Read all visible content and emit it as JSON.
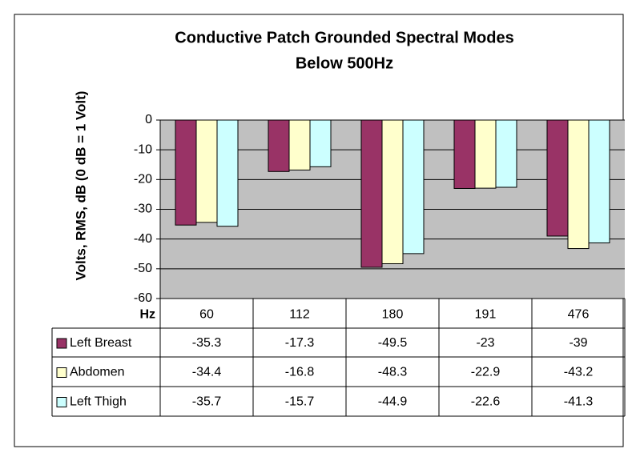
{
  "chart_data": {
    "type": "bar",
    "title": "Conductive Patch Grounded Spectral Modes",
    "subtitle": "Below 500Hz",
    "y_label": "Volts, RMS, dB (0 dB = 1 Volt)",
    "x_label": "Hz",
    "categories": [
      "60",
      "112",
      "180",
      "191",
      "476"
    ],
    "series": [
      {
        "name": "Left Breast",
        "color": "#993366",
        "values": [
          -35.3,
          -17.3,
          -49.5,
          -23,
          -39
        ]
      },
      {
        "name": "Abdomen",
        "color": "#FFFFCC",
        "values": [
          -34.4,
          -16.8,
          -48.3,
          -22.9,
          -43.2
        ]
      },
      {
        "name": "Left Thigh",
        "color": "#CCFFFF",
        "values": [
          -35.7,
          -15.7,
          -44.9,
          -22.6,
          -41.3
        ]
      }
    ],
    "ylim": [
      -60,
      0
    ],
    "yticks": [
      0,
      -10,
      -20,
      -30,
      -40,
      -50,
      -60
    ],
    "grid": true,
    "background": "#C0C0C0"
  }
}
